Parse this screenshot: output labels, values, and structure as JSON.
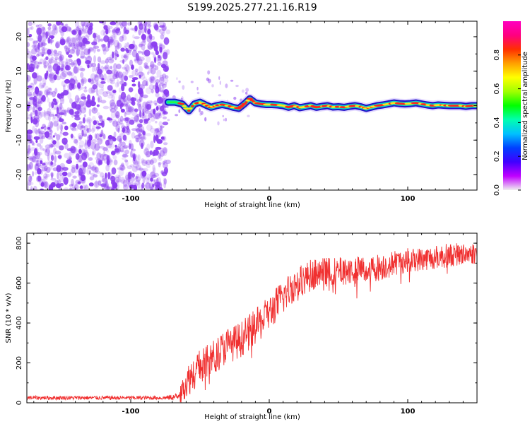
{
  "title": "S199.2025.277.21.16.R19",
  "colors": {
    "snr_line": "#f03030",
    "noise_dot": "#8a3cf0",
    "ridge_outer": "#2010c8",
    "ridge_mid": "#10d0c0",
    "ridge_inner": "#ff2a1a",
    "axis": "#000000"
  },
  "chart_data": [
    {
      "type": "heatmap",
      "name": "spectrogram",
      "xlabel": "Height of straight line (km)",
      "ylabel": "Frequency (Hz)",
      "xlim": [
        -175,
        150
      ],
      "ylim": [
        -24.5,
        24.5
      ],
      "xticks": [
        -100,
        0,
        100
      ],
      "xtick_labels": [
        "-100",
        "0",
        "100"
      ],
      "yticks": [
        -20,
        -10,
        0,
        10,
        20
      ],
      "ytick_labels": [
        "-20",
        "-10",
        "0",
        "10",
        "20"
      ],
      "noise_region_x": [
        -175,
        -73
      ],
      "ridge": {
        "x": [
          -73,
          -68,
          -63,
          -58,
          -54,
          -50,
          -46,
          -42,
          -38,
          -34,
          -30,
          -26,
          -22,
          -18,
          -14,
          -10,
          -6,
          -2,
          2,
          6,
          10,
          14,
          18,
          22,
          26,
          30,
          34,
          38,
          42,
          46,
          50,
          54,
          58,
          62,
          66,
          70,
          74,
          78,
          82,
          86,
          90,
          94,
          98,
          102,
          106,
          110,
          114,
          118,
          122,
          126,
          130,
          134,
          138,
          142,
          146,
          150
        ],
        "y": [
          1.0,
          1.0,
          0.5,
          -1.5,
          0.5,
          1.0,
          0.2,
          -0.5,
          0.0,
          0.3,
          0.0,
          -0.5,
          -0.8,
          0.5,
          2.0,
          0.8,
          0.5,
          0.3,
          0.3,
          0.2,
          0.0,
          -0.5,
          0.0,
          -0.6,
          -0.3,
          0.0,
          -0.5,
          -0.2,
          0.0,
          -0.4,
          -0.3,
          -0.5,
          -0.2,
          0.0,
          -0.3,
          -0.8,
          -0.4,
          0.0,
          0.2,
          0.5,
          0.8,
          0.6,
          0.5,
          0.6,
          0.8,
          0.5,
          0.2,
          0.0,
          0.2,
          0.1,
          0.0,
          0.0,
          0.0,
          -0.2,
          0.0,
          0.0
        ]
      },
      "colorbar": {
        "label": "Normalized spectral amplitude",
        "range": [
          0,
          1
        ],
        "ticks": [
          0.0,
          0.2,
          0.4,
          0.6,
          0.8
        ],
        "tick_labels": [
          "0.0",
          "0.2",
          "0.4",
          "0.6",
          "0.8"
        ],
        "stops": [
          "#f0f0f0",
          "#c000ff",
          "#4000ff",
          "#0040ff",
          "#00c0ff",
          "#00ffb0",
          "#00ff00",
          "#a0ff00",
          "#ffff00",
          "#ffa000",
          "#ff3000",
          "#ff0080",
          "#ff00c0"
        ]
      }
    },
    {
      "type": "line",
      "name": "snr",
      "xlabel": "Height of straight line (km)",
      "ylabel": "SNR (10 * v/v)",
      "xlim": [
        -175,
        150
      ],
      "ylim": [
        0,
        850
      ],
      "xticks": [
        -100,
        0,
        100
      ],
      "xtick_labels": [
        "-100",
        "0",
        "100"
      ],
      "yticks": [
        0,
        200,
        400,
        600,
        800
      ],
      "ytick_labels": [
        "0",
        "200",
        "400",
        "600",
        "800"
      ],
      "series": [
        {
          "name": "SNR",
          "x": [
            -175,
            -150,
            -125,
            -100,
            -75,
            -66,
            -60,
            -55,
            -50,
            -45,
            -40,
            -35,
            -30,
            -25,
            -20,
            -15,
            -10,
            -5,
            0,
            5,
            10,
            15,
            20,
            25,
            30,
            35,
            40,
            50,
            60,
            70,
            80,
            90,
            100,
            110,
            120,
            130,
            140,
            150
          ],
          "y": [
            25,
            25,
            25,
            25,
            25,
            30,
            100,
            150,
            180,
            200,
            230,
            260,
            290,
            300,
            320,
            350,
            380,
            410,
            450,
            490,
            530,
            570,
            600,
            620,
            640,
            650,
            655,
            660,
            665,
            670,
            680,
            700,
            715,
            720,
            730,
            740,
            745,
            750
          ],
          "noise_amplitude": [
            10,
            10,
            10,
            10,
            10,
            20,
            80,
            90,
            90,
            90,
            90,
            90,
            90,
            90,
            90,
            90,
            90,
            90,
            90,
            90,
            90,
            85,
            80,
            80,
            80,
            75,
            75,
            70,
            70,
            70,
            70,
            65,
            60,
            60,
            60,
            60,
            55,
            55
          ]
        }
      ]
    }
  ]
}
